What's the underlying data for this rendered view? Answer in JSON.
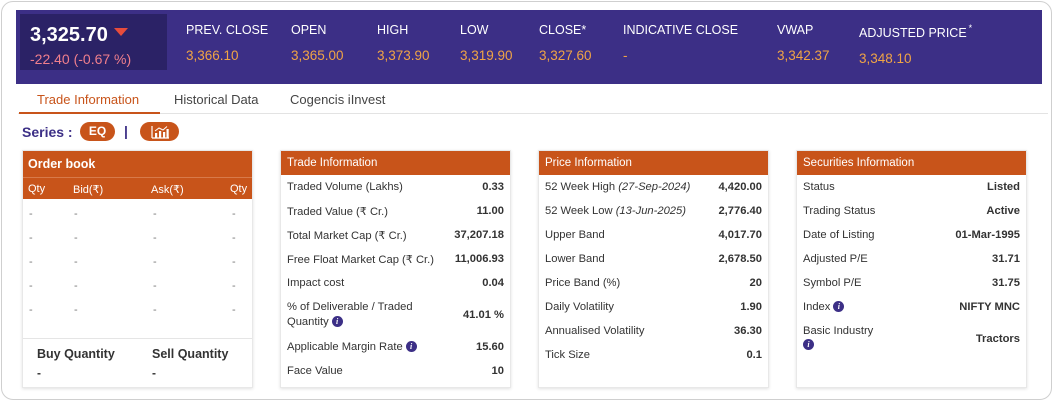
{
  "quote": {
    "last_price": "3,325.70",
    "change": "-22.40 (-0.67 %)",
    "direction": "down"
  },
  "stats": [
    {
      "label": "PREV. CLOSE",
      "value": "3,366.10"
    },
    {
      "label": "OPEN",
      "value": "3,365.00"
    },
    {
      "label": "HIGH",
      "value": "3,373.90"
    },
    {
      "label": "LOW",
      "value": "3,319.90"
    },
    {
      "label": "CLOSE*",
      "value": "3,327.60"
    },
    {
      "label": "INDICATIVE CLOSE",
      "value": "-"
    },
    {
      "label": "VWAP",
      "value": "3,342.37"
    },
    {
      "label": "ADJUSTED PRICE",
      "sup": "*",
      "value": "3,348.10"
    }
  ],
  "tabs": [
    {
      "label": "Trade Information",
      "active": true
    },
    {
      "label": "Historical Data",
      "active": false
    },
    {
      "label": "Cogencis iInvest",
      "active": false
    }
  ],
  "series": {
    "label": "Series :",
    "value": "EQ",
    "separator": "|",
    "chart_icon": "bar-chart-icon"
  },
  "order_book": {
    "title": "Order book",
    "columns": [
      "Qty",
      "Bid(₹)",
      "Ask(₹)",
      "Qty"
    ],
    "rows": [
      [
        "-",
        "-",
        "-",
        "-"
      ],
      [
        "-",
        "-",
        "-",
        "-"
      ],
      [
        "-",
        "-",
        "-",
        "-"
      ],
      [
        "-",
        "-",
        "-",
        "-"
      ],
      [
        "-",
        "-",
        "-",
        "-"
      ]
    ],
    "buy_label": "Buy Quantity",
    "buy_value": "-",
    "sell_label": "Sell Quantity",
    "sell_value": "-"
  },
  "trade_info": {
    "title": "Trade Information",
    "rows": [
      {
        "label": "Traded Volume (Lakhs)",
        "value": "0.33"
      },
      {
        "label": "Traded Value (₹ Cr.)",
        "value": "11.00"
      },
      {
        "label": "Total Market Cap (₹ Cr.)",
        "value": "37,207.18"
      },
      {
        "label": "Free Float Market Cap (₹ Cr.)",
        "value": "11,006.93"
      },
      {
        "label": "Impact cost",
        "value": "0.04"
      },
      {
        "label": "% of Deliverable / Traded",
        "label2": "Quantity",
        "value": "41.01 %",
        "info": true
      },
      {
        "label": "Applicable Margin Rate",
        "value": "15.60",
        "info": true
      },
      {
        "label": "Face Value",
        "value": "10"
      }
    ]
  },
  "price_info": {
    "title": "Price Information",
    "rows": [
      {
        "label": "52 Week High",
        "date": "(27-Sep-2024)",
        "value": "4,420.00"
      },
      {
        "label": "52 Week Low",
        "date": "(13-Jun-2025)",
        "value": "2,776.40"
      },
      {
        "label": "Upper Band",
        "value": "4,017.70"
      },
      {
        "label": "Lower Band",
        "value": "2,678.50"
      },
      {
        "label": "Price Band (%)",
        "value": "20"
      },
      {
        "label": "Daily Volatility",
        "value": "1.90"
      },
      {
        "label": "Annualised Volatility",
        "value": "36.30"
      },
      {
        "label": "Tick Size",
        "value": "0.1"
      }
    ]
  },
  "securities_info": {
    "title": "Securities Information",
    "rows": [
      {
        "label": "Status",
        "value": "Listed"
      },
      {
        "label": "Trading Status",
        "value": "Active"
      },
      {
        "label": "Date of Listing",
        "value": "01-Mar-1995"
      },
      {
        "label": "Adjusted P/E",
        "value": "31.71"
      },
      {
        "label": "Symbol P/E",
        "value": "31.75"
      },
      {
        "label": "Index",
        "value": "NIFTY MNC",
        "info": true
      },
      {
        "label": "Basic Industry",
        "value": "Tractors",
        "info": true
      }
    ]
  },
  "colors": {
    "header_bg": "#3c2f86",
    "accent": "#c8541a",
    "value_gold": "#f0a445",
    "negative": "#f07f8c"
  }
}
